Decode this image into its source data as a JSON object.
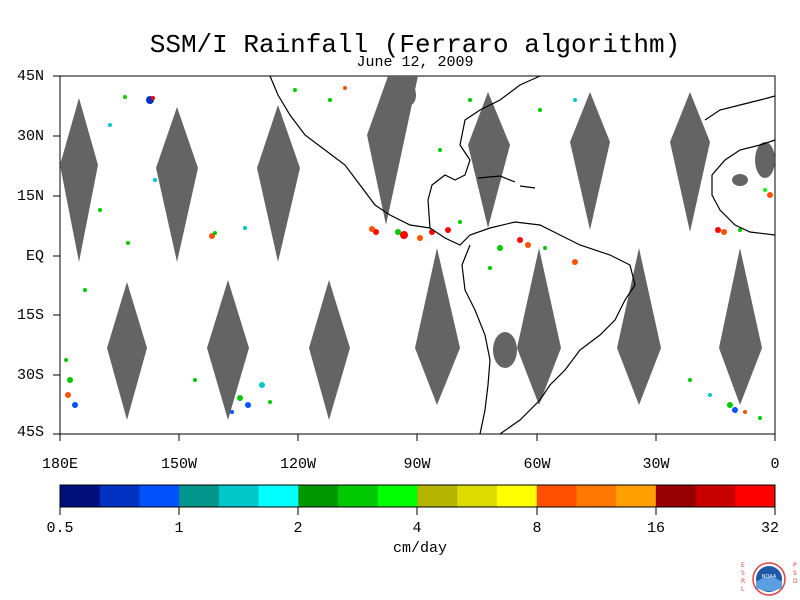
{
  "title": "SSM/I Rainfall (Ferraro algorithm)",
  "subtitle": "June 12, 2009",
  "map": {
    "lat_labels": [
      "45N",
      "30N",
      "15N",
      "EQ",
      "15S",
      "30S",
      "45S"
    ],
    "lon_labels": [
      "180E",
      "150W",
      "120W",
      "90W",
      "60W",
      "30W",
      "0"
    ],
    "swath_gap_color": "#646464",
    "land_outline_color": "#000000"
  },
  "colorbar": {
    "tick_labels": [
      "0.5",
      "1",
      "2",
      "4",
      "8",
      "16",
      "32"
    ],
    "units": "cm/day",
    "colors": [
      "#000f7a",
      "#0031c0",
      "#0052ff",
      "#00968c",
      "#00c8c8",
      "#00ffff",
      "#009600",
      "#00c800",
      "#00ff00",
      "#b4b400",
      "#dcdc00",
      "#ffff00",
      "#ff5000",
      "#ff7800",
      "#ffa000",
      "#960000",
      "#c80000",
      "#ff0000"
    ]
  },
  "logo": {
    "left_letters": "ESRL",
    "right_letters": "PSD",
    "center_text": "NOAA"
  }
}
